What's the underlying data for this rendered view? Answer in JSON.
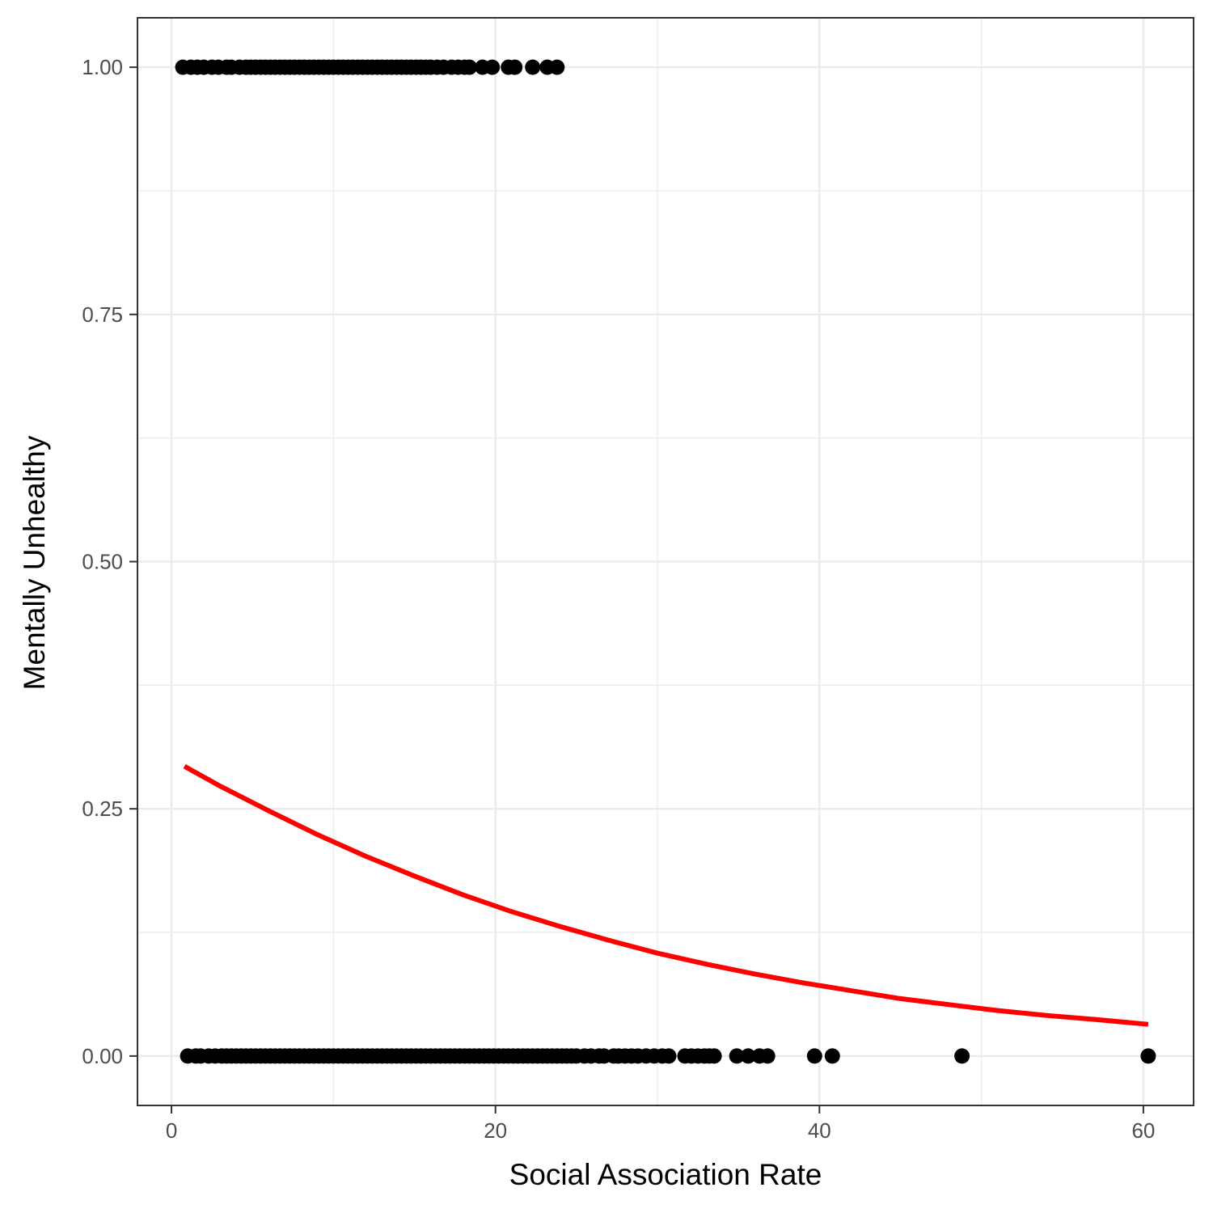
{
  "chart_data": {
    "type": "scatter",
    "title": "",
    "xlabel": "Social Association Rate",
    "ylabel": "Mentally Unhealthy",
    "xlim": [
      -2.1,
      63.1
    ],
    "ylim": [
      -0.05,
      1.05
    ],
    "x_ticks": [
      0,
      20,
      40,
      60
    ],
    "x_tick_labels": [
      "0",
      "20",
      "40",
      "60"
    ],
    "y_ticks": [
      0,
      0.25,
      0.5,
      0.75,
      1.0
    ],
    "y_tick_labels": [
      "0.00",
      "0.25",
      "0.50",
      "0.75",
      "1.00"
    ],
    "grid": true,
    "legend": "none",
    "series": [
      {
        "kind": "points",
        "y": 1,
        "x": [
          0.7,
          1.2,
          1.6,
          2.0,
          2.5,
          2.9,
          3.4,
          3.7,
          4.2,
          4.6,
          4.9,
          5.2,
          5.5,
          5.8,
          6.1,
          6.4,
          6.7,
          7.0,
          7.3,
          7.6,
          7.9,
          8.2,
          8.5,
          8.8,
          9.1,
          9.4,
          9.7,
          10.0,
          10.3,
          10.6,
          10.9,
          11.2,
          11.5,
          11.8,
          12.1,
          12.4,
          12.7,
          13.0,
          13.3,
          13.6,
          13.9,
          14.2,
          14.5,
          14.8,
          15.1,
          15.4,
          15.7,
          16.0,
          16.4,
          16.8,
          17.3,
          17.7,
          18.1,
          18.4,
          19.2,
          19.8,
          20.8,
          21.2,
          22.3,
          23.2,
          23.8
        ],
        "color": "#000000"
      },
      {
        "kind": "points",
        "y": 0,
        "x": [
          1.0,
          1.5,
          1.8,
          2.3,
          2.7,
          3.1,
          3.4,
          3.7,
          4.0,
          4.3,
          4.6,
          4.9,
          5.2,
          5.5,
          5.8,
          6.1,
          6.4,
          6.7,
          7.0,
          7.3,
          7.6,
          7.9,
          8.2,
          8.5,
          8.8,
          9.1,
          9.4,
          9.7,
          10.0,
          10.3,
          10.6,
          10.9,
          11.2,
          11.5,
          11.8,
          12.1,
          12.4,
          12.7,
          13.0,
          13.3,
          13.6,
          13.9,
          14.2,
          14.5,
          14.8,
          15.1,
          15.4,
          15.7,
          16.0,
          16.3,
          16.6,
          16.9,
          17.2,
          17.5,
          17.8,
          18.1,
          18.4,
          18.7,
          19.0,
          19.3,
          19.6,
          19.9,
          20.2,
          20.5,
          20.8,
          21.1,
          21.4,
          21.7,
          22.0,
          22.3,
          22.6,
          22.9,
          23.2,
          23.5,
          23.8,
          24.1,
          24.4,
          24.7,
          25.0,
          25.5,
          25.9,
          26.4,
          26.7,
          27.3,
          27.6,
          28.0,
          28.4,
          28.8,
          29.3,
          29.8,
          30.3,
          30.7,
          31.7,
          32.1,
          32.5,
          32.9,
          33.2,
          33.5,
          34.9,
          35.6,
          36.3,
          36.8,
          39.7,
          40.8,
          48.8,
          60.3
        ],
        "color": "#000000"
      },
      {
        "kind": "line",
        "x": [
          0.8,
          3,
          6,
          9,
          12,
          15,
          18,
          21,
          24,
          27,
          30,
          33,
          36,
          39,
          42,
          45,
          48,
          51,
          54,
          57,
          60.3
        ],
        "y": [
          0.293,
          0.273,
          0.248,
          0.224,
          0.202,
          0.182,
          0.163,
          0.146,
          0.131,
          0.117,
          0.104,
          0.093,
          0.083,
          0.074,
          0.066,
          0.058,
          0.052,
          0.046,
          0.041,
          0.037,
          0.032
        ],
        "color": "#ff0000"
      }
    ]
  }
}
